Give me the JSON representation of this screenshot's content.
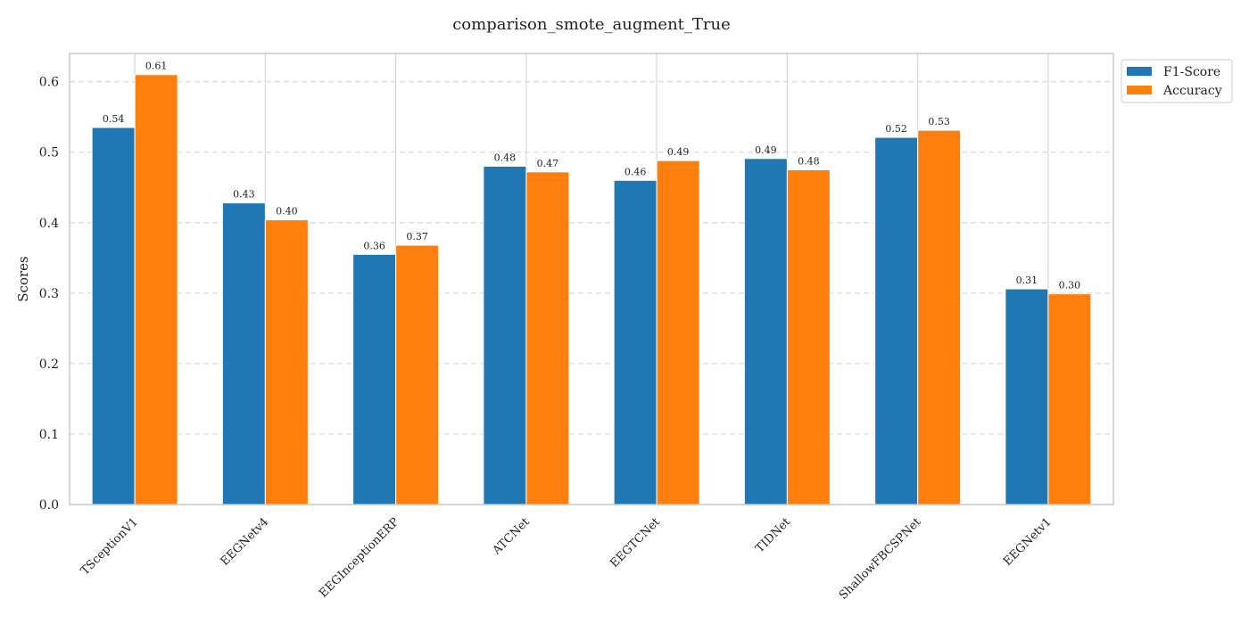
{
  "chart_data": {
    "type": "bar",
    "title": "comparison_smote_augment_True",
    "xlabel": "",
    "ylabel": "Scores",
    "categories": [
      "TSceptionV1",
      "EEGNetv4",
      "EEGInceptionERP",
      "ATCNet",
      "EEGTCNet",
      "TIDNet",
      "ShallowFBCSPNet",
      "EEGNetv1"
    ],
    "series": [
      {
        "name": "F1-Score",
        "color": "#1f77b4",
        "values": [
          0.535,
          0.428,
          0.355,
          0.48,
          0.46,
          0.491,
          0.521,
          0.306
        ],
        "labels": [
          "0.54",
          "0.43",
          "0.36",
          "0.48",
          "0.46",
          "0.49",
          "0.52",
          "0.31"
        ]
      },
      {
        "name": "Accuracy",
        "color": "#ff7f0e",
        "values": [
          0.61,
          0.404,
          0.368,
          0.472,
          0.488,
          0.475,
          0.531,
          0.299
        ],
        "labels": [
          "0.61",
          "0.40",
          "0.37",
          "0.47",
          "0.49",
          "0.48",
          "0.53",
          "0.30"
        ]
      }
    ],
    "ylim": [
      0,
      0.64
    ],
    "yticks": [
      "0.0",
      "0.1",
      "0.2",
      "0.3",
      "0.4",
      "0.5",
      "0.6"
    ],
    "ytick_values": [
      0,
      0.1,
      0.2,
      0.3,
      0.4,
      0.5,
      0.6
    ],
    "grid": true,
    "legend_position": "outside-top-right",
    "colors": {
      "grid": "#d5d9de",
      "spine": "#c8c8c8",
      "text": "#222222"
    }
  }
}
